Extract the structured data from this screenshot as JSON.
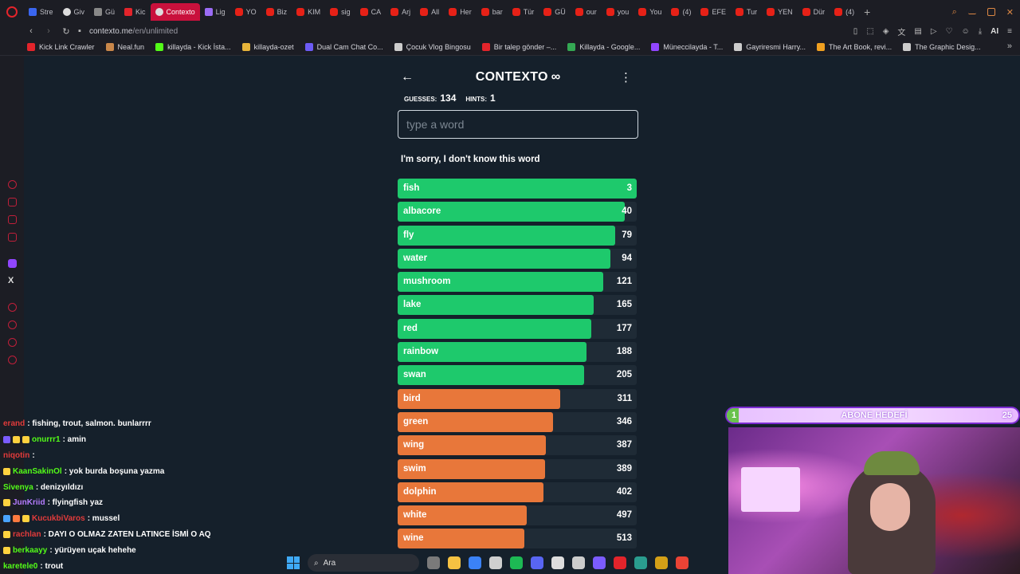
{
  "browser": {
    "tabs": [
      {
        "label": "Stre",
        "icon": "blue"
      },
      {
        "label": "Giv",
        "icon": "white"
      },
      {
        "label": "Gü",
        "icon": "grey"
      },
      {
        "label": "Kic",
        "icon": "kick"
      },
      {
        "label": "Contexto",
        "icon": "white",
        "active": true
      },
      {
        "label": "Lig",
        "icon": "purple"
      },
      {
        "label": "YO",
        "icon": "yt"
      },
      {
        "label": "Biz",
        "icon": "yt"
      },
      {
        "label": "KIM",
        "icon": "yt"
      },
      {
        "label": "sig",
        "icon": "yt"
      },
      {
        "label": "CA",
        "icon": "yt"
      },
      {
        "label": "Arj",
        "icon": "yt"
      },
      {
        "label": "All",
        "icon": "yt"
      },
      {
        "label": "Her",
        "icon": "yt"
      },
      {
        "label": "bar",
        "icon": "yt"
      },
      {
        "label": "Tür",
        "icon": "yt"
      },
      {
        "label": "GÜ",
        "icon": "yt"
      },
      {
        "label": "our",
        "icon": "yt"
      },
      {
        "label": "you",
        "icon": "yt"
      },
      {
        "label": "You",
        "icon": "yt"
      },
      {
        "label": "(4)",
        "icon": "yt"
      },
      {
        "label": "EFE",
        "icon": "yt"
      },
      {
        "label": "Tur",
        "icon": "yt"
      },
      {
        "label": "YEN",
        "icon": "yt"
      },
      {
        "label": "Dür",
        "icon": "yt"
      },
      {
        "label": "(4)",
        "icon": "yt"
      }
    ],
    "new_tab": "+",
    "url_host": "contexto.me",
    "url_path": "/en/unlimited",
    "addr_ai": "AI",
    "bookmarks": [
      {
        "label": "Kick Link Crawler",
        "color": "#e3242b"
      },
      {
        "label": "Neal.fun",
        "color": "#c9874a"
      },
      {
        "label": "killayda - Kick İsta...",
        "color": "#53fc18"
      },
      {
        "label": "killayda-ozet",
        "color": "#e7b43a"
      },
      {
        "label": "Dual Cam Chat Co...",
        "color": "#6c5bf5"
      },
      {
        "label": "Çocuk Vlog Bingosu",
        "color": "#cccccc"
      },
      {
        "label": "Bir talep gönder –...",
        "color": "#e3242b"
      },
      {
        "label": "Killayda - Google...",
        "color": "#34a853"
      },
      {
        "label": "Müneccilayda - T...",
        "color": "#9146ff"
      },
      {
        "label": "Gayriresmi Harry...",
        "color": "#cccccc"
      },
      {
        "label": "The Art Book, revi...",
        "color": "#f0a020"
      },
      {
        "label": "The Graphic Desig...",
        "color": "#cccccc"
      }
    ]
  },
  "game": {
    "title": "CONTEXTO",
    "title_symbol": "∞",
    "guesses_label": "GUESSES:",
    "guesses": "134",
    "hints_label": "HINTS:",
    "hints": "1",
    "input_placeholder": "type a word",
    "message": "I'm sorry, I don't know this word",
    "rows": [
      {
        "word": "fish",
        "rank": 3,
        "fill": 1.0,
        "color": "#1ec96c"
      },
      {
        "word": "albacore",
        "rank": 40,
        "fill": 0.95,
        "color": "#1ec96c"
      },
      {
        "word": "fly",
        "rank": 79,
        "fill": 0.91,
        "color": "#1ec96c"
      },
      {
        "word": "water",
        "rank": 94,
        "fill": 0.89,
        "color": "#1ec96c"
      },
      {
        "word": "mushroom",
        "rank": 121,
        "fill": 0.86,
        "color": "#1ec96c"
      },
      {
        "word": "lake",
        "rank": 165,
        "fill": 0.82,
        "color": "#1ec96c"
      },
      {
        "word": "red",
        "rank": 177,
        "fill": 0.81,
        "color": "#1ec96c"
      },
      {
        "word": "rainbow",
        "rank": 188,
        "fill": 0.79,
        "color": "#1ec96c"
      },
      {
        "word": "swan",
        "rank": 205,
        "fill": 0.78,
        "color": "#1ec96c"
      },
      {
        "word": "bird",
        "rank": 311,
        "fill": 0.68,
        "color": "#e8773a"
      },
      {
        "word": "green",
        "rank": 346,
        "fill": 0.65,
        "color": "#e8773a"
      },
      {
        "word": "wing",
        "rank": 387,
        "fill": 0.62,
        "color": "#e8773a"
      },
      {
        "word": "swim",
        "rank": 389,
        "fill": 0.615,
        "color": "#e8773a"
      },
      {
        "word": "dolphin",
        "rank": 402,
        "fill": 0.61,
        "color": "#e8773a"
      },
      {
        "word": "white",
        "rank": 497,
        "fill": 0.54,
        "color": "#e8773a"
      },
      {
        "word": "wine",
        "rank": 513,
        "fill": 0.53,
        "color": "#e8773a"
      }
    ]
  },
  "chat": [
    {
      "user": "erand",
      "user_color": "#e23b3b",
      "msg": ": fishing, trout, salmon. bunlarrrr",
      "badges": []
    },
    {
      "user": "onurrr1",
      "user_color": "#53fc18",
      "msg": ": amin",
      "badges": [
        "#7b5cff",
        "#ffd23f",
        "#ffd23f"
      ]
    },
    {
      "user": "niqotin",
      "user_color": "#e23b3b",
      "msg": ":",
      "badges": []
    },
    {
      "user": "KaanSakinOl",
      "user_color": "#53fc18",
      "msg": ": yok burda boşuna yazma",
      "badges": [
        "#ffd23f"
      ]
    },
    {
      "user": "Sivenya",
      "user_color": "#53fc18",
      "msg": ": denizyıldızı",
      "badges": []
    },
    {
      "user": "JunKriid",
      "user_color": "#b57cff",
      "msg": ": flyingfish yaz",
      "badges": [
        "#ffd23f"
      ]
    },
    {
      "user": "KucukbiVaros",
      "user_color": "#e23b3b",
      "msg": ": mussel",
      "badges": [
        "#4aa3ff",
        "#ff7a3f",
        "#ffd23f"
      ]
    },
    {
      "user": "rachlan",
      "user_color": "#e23b3b",
      "msg": ": DAYI O OLMAZ ZATEN LATINCE İSMİ O AQ",
      "badges": [
        "#ffd23f"
      ]
    },
    {
      "user": "berkaayy",
      "user_color": "#53fc18",
      "msg": ": yürüyen uçak hehehe",
      "badges": [
        "#ffd23f"
      ]
    },
    {
      "user": "karetele0",
      "user_color": "#53fc18",
      "msg": ": trout",
      "badges": []
    }
  ],
  "stream_goal": {
    "title": "ABONE HEDEFİ",
    "current": "1",
    "target": "25",
    "progress": 0.04
  },
  "taskbar": {
    "search_label": "Ara",
    "apps": [
      "#7a7a7a",
      "#f5c242",
      "#3b82f6",
      "#cfcfcf",
      "#1db954",
      "#5865f2",
      "#dddddd",
      "#cccccc",
      "#7b5cff",
      "#e3242b",
      "#2a9d8f",
      "#d4a017",
      "#ea4335"
    ]
  }
}
